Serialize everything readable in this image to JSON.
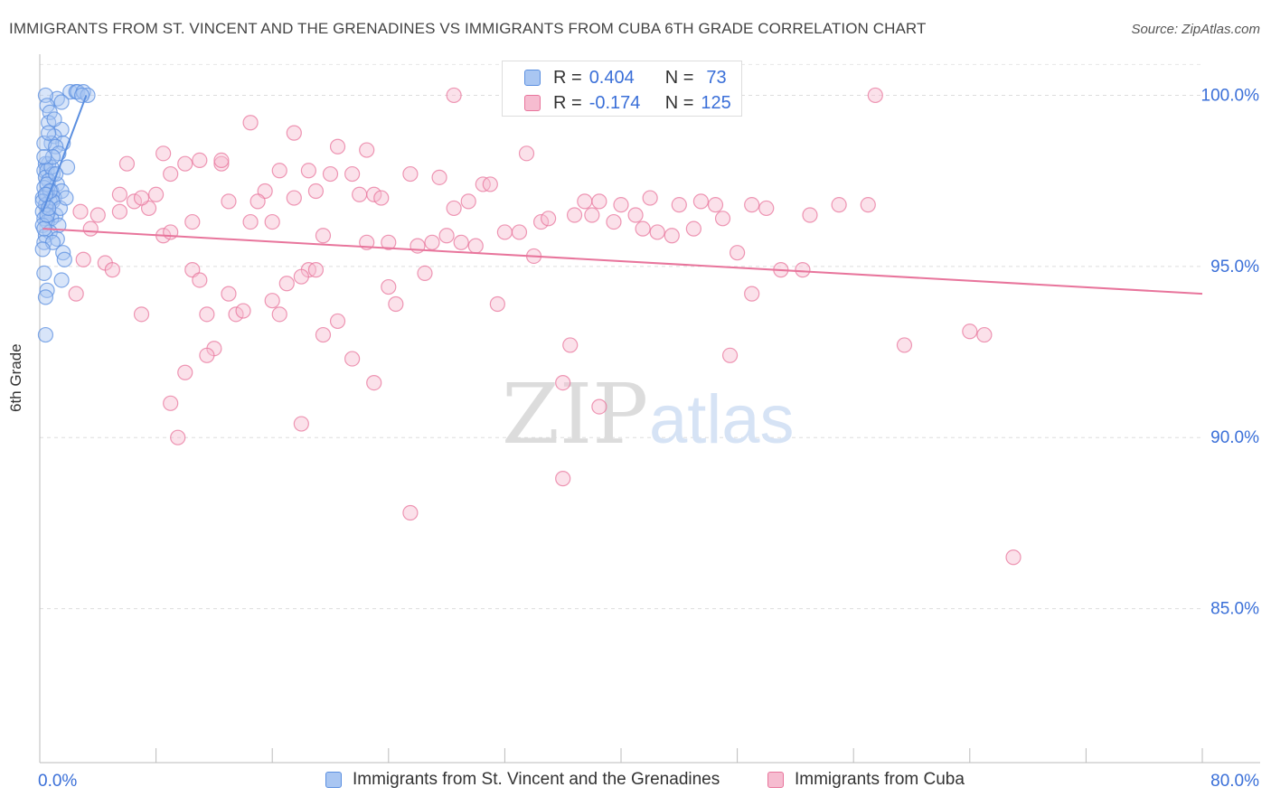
{
  "title": "IMMIGRANTS FROM ST. VINCENT AND THE GRENADINES VS IMMIGRANTS FROM CUBA 6TH GRADE CORRELATION CHART",
  "source": "Source: ZipAtlas.com",
  "watermark": {
    "zip": "ZIP",
    "atlas": "atlas"
  },
  "colors": {
    "blue": "#5b8fe0",
    "blue_fill": "#a9c6f2",
    "pink": "#e8759c",
    "pink_fill": "#f6bcd0",
    "tick_label": "#3a6fd8"
  },
  "stats": {
    "rows": [
      {
        "r_label": "R =",
        "r_value": "0.404",
        "n_label": "N =",
        "n_value": "73"
      },
      {
        "r_label": "R =",
        "r_value": "-0.174",
        "n_label": "N =",
        "n_value": "125"
      }
    ]
  },
  "legend": {
    "items": [
      "Immigrants from St. Vincent and the Grenadines",
      "Immigrants from Cuba"
    ]
  },
  "chart_data": {
    "type": "scatter",
    "ylabel": "6th Grade",
    "xlabel": "",
    "xlim": [
      0,
      80
    ],
    "ylim": [
      80.5,
      101.2
    ],
    "x_tick_labels": [
      "0.0%",
      "80.0%"
    ],
    "y_ticks": [
      85,
      90,
      95,
      100
    ],
    "y_tick_labels": [
      "85.0%",
      "90.0%",
      "95.0%",
      "100.0%"
    ],
    "grid": true,
    "legend_position": "bottom",
    "series": [
      {
        "name": "Immigrants from St. Vincent and the Grenadines",
        "color": "#5b8fe0",
        "trend": {
          "x": [
            0.2,
            3.2
          ],
          "y": [
            96.6,
            100.0
          ]
        },
        "points": [
          [
            2.1,
            100.1
          ],
          [
            2.5,
            100.1
          ],
          [
            2.6,
            100.1
          ],
          [
            3.0,
            100.1
          ],
          [
            3.3,
            100.0
          ],
          [
            1.2,
            99.9
          ],
          [
            1.5,
            99.8
          ],
          [
            2.9,
            100.0
          ],
          [
            0.4,
            100.0
          ],
          [
            0.5,
            99.7
          ],
          [
            0.7,
            99.5
          ],
          [
            0.6,
            99.2
          ],
          [
            1.5,
            99.0
          ],
          [
            1.0,
            98.8
          ],
          [
            1.6,
            98.6
          ],
          [
            0.8,
            98.6
          ],
          [
            0.3,
            98.6
          ],
          [
            1.1,
            98.5
          ],
          [
            0.6,
            98.0
          ],
          [
            0.4,
            98.0
          ],
          [
            1.9,
            97.9
          ],
          [
            0.3,
            97.8
          ],
          [
            0.5,
            97.8
          ],
          [
            0.9,
            97.7
          ],
          [
            0.4,
            97.6
          ],
          [
            0.6,
            97.5
          ],
          [
            1.2,
            97.4
          ],
          [
            0.3,
            97.3
          ],
          [
            0.8,
            97.2
          ],
          [
            1.5,
            97.2
          ],
          [
            0.5,
            97.1
          ],
          [
            0.2,
            97.0
          ],
          [
            1.0,
            97.0
          ],
          [
            0.7,
            96.9
          ],
          [
            0.4,
            96.8
          ],
          [
            0.2,
            96.6
          ],
          [
            0.6,
            96.6
          ],
          [
            1.1,
            96.5
          ],
          [
            0.3,
            96.4
          ],
          [
            0.8,
            96.4
          ],
          [
            0.5,
            96.3
          ],
          [
            1.3,
            96.2
          ],
          [
            0.2,
            96.2
          ],
          [
            0.7,
            96.0
          ],
          [
            0.4,
            95.9
          ],
          [
            1.2,
            95.8
          ],
          [
            0.3,
            95.7
          ],
          [
            0.9,
            95.7
          ],
          [
            0.2,
            95.5
          ],
          [
            1.6,
            95.4
          ],
          [
            1.7,
            95.2
          ],
          [
            0.3,
            94.8
          ],
          [
            1.5,
            94.6
          ],
          [
            0.5,
            94.3
          ],
          [
            0.4,
            94.1
          ],
          [
            0.4,
            93.0
          ],
          [
            0.8,
            97.9
          ],
          [
            1.3,
            98.3
          ],
          [
            0.6,
            98.9
          ],
          [
            1.0,
            99.3
          ],
          [
            0.5,
            97.4
          ],
          [
            0.9,
            96.9
          ],
          [
            0.3,
            96.1
          ],
          [
            1.4,
            96.7
          ],
          [
            0.7,
            97.2
          ],
          [
            0.2,
            96.9
          ],
          [
            1.8,
            97.0
          ],
          [
            0.5,
            96.5
          ],
          [
            0.9,
            98.2
          ],
          [
            0.4,
            97.1
          ],
          [
            1.1,
            97.7
          ],
          [
            0.6,
            96.7
          ],
          [
            0.3,
            98.2
          ]
        ]
      },
      {
        "name": "Immigrants from Cuba",
        "color": "#e8759c",
        "trend": {
          "x": [
            0.2,
            80.0
          ],
          "y": [
            96.1,
            94.2
          ]
        },
        "points": [
          [
            28.5,
            100.0
          ],
          [
            57.5,
            100.0
          ],
          [
            14.5,
            99.2
          ],
          [
            17.5,
            98.9
          ],
          [
            20.5,
            98.5
          ],
          [
            22.5,
            98.4
          ],
          [
            8.5,
            98.3
          ],
          [
            33.5,
            98.3
          ],
          [
            6.0,
            98.0
          ],
          [
            10.0,
            98.0
          ],
          [
            11.0,
            98.1
          ],
          [
            12.5,
            98.0
          ],
          [
            16.5,
            97.8
          ],
          [
            18.5,
            97.8
          ],
          [
            20.0,
            97.7
          ],
          [
            25.5,
            97.7
          ],
          [
            9.0,
            97.7
          ],
          [
            27.5,
            97.6
          ],
          [
            30.5,
            97.4
          ],
          [
            19.0,
            97.2
          ],
          [
            5.5,
            97.1
          ],
          [
            8.0,
            97.1
          ],
          [
            15.5,
            97.2
          ],
          [
            22.0,
            97.1
          ],
          [
            23.0,
            97.1
          ],
          [
            23.5,
            97.0
          ],
          [
            13.0,
            96.9
          ],
          [
            15.0,
            96.9
          ],
          [
            37.5,
            96.9
          ],
          [
            38.5,
            96.9
          ],
          [
            40.0,
            96.8
          ],
          [
            41.0,
            96.5
          ],
          [
            44.0,
            96.8
          ],
          [
            45.5,
            96.9
          ],
          [
            49.0,
            96.8
          ],
          [
            50.0,
            96.7
          ],
          [
            53.0,
            96.5
          ],
          [
            55.0,
            96.8
          ],
          [
            57.0,
            96.8
          ],
          [
            4.0,
            96.5
          ],
          [
            5.5,
            96.6
          ],
          [
            7.5,
            96.7
          ],
          [
            10.5,
            96.3
          ],
          [
            14.5,
            96.3
          ],
          [
            16.0,
            96.3
          ],
          [
            28.5,
            96.7
          ],
          [
            34.5,
            96.3
          ],
          [
            35.0,
            96.4
          ],
          [
            39.5,
            96.3
          ],
          [
            41.5,
            96.1
          ],
          [
            42.5,
            96.0
          ],
          [
            43.5,
            95.9
          ],
          [
            45.0,
            96.1
          ],
          [
            47.0,
            96.4
          ],
          [
            3.5,
            96.1
          ],
          [
            8.5,
            95.9
          ],
          [
            9.0,
            96.0
          ],
          [
            19.5,
            95.9
          ],
          [
            24.0,
            95.7
          ],
          [
            27.0,
            95.7
          ],
          [
            28.0,
            95.9
          ],
          [
            29.0,
            95.7
          ],
          [
            30.0,
            95.6
          ],
          [
            34.0,
            95.3
          ],
          [
            48.0,
            95.4
          ],
          [
            3.0,
            95.2
          ],
          [
            4.5,
            95.1
          ],
          [
            5.0,
            94.9
          ],
          [
            10.5,
            94.9
          ],
          [
            18.5,
            94.9
          ],
          [
            18.0,
            94.7
          ],
          [
            26.5,
            94.8
          ],
          [
            11.0,
            94.6
          ],
          [
            17.0,
            94.5
          ],
          [
            24.0,
            94.4
          ],
          [
            13.0,
            94.2
          ],
          [
            49.0,
            94.2
          ],
          [
            51.0,
            94.9
          ],
          [
            52.5,
            94.9
          ],
          [
            2.5,
            94.2
          ],
          [
            16.0,
            94.0
          ],
          [
            24.5,
            93.9
          ],
          [
            7.0,
            93.6
          ],
          [
            11.5,
            93.6
          ],
          [
            13.5,
            93.6
          ],
          [
            16.5,
            93.6
          ],
          [
            20.5,
            93.4
          ],
          [
            31.5,
            93.9
          ],
          [
            19.5,
            93.0
          ],
          [
            36.5,
            92.7
          ],
          [
            59.5,
            92.7
          ],
          [
            64.0,
            93.1
          ],
          [
            65.0,
            93.0
          ],
          [
            12.0,
            92.6
          ],
          [
            11.5,
            92.4
          ],
          [
            21.5,
            92.3
          ],
          [
            47.5,
            92.4
          ],
          [
            10.0,
            91.9
          ],
          [
            23.0,
            91.6
          ],
          [
            36.0,
            91.6
          ],
          [
            9.0,
            91.0
          ],
          [
            38.5,
            90.9
          ],
          [
            18.0,
            90.4
          ],
          [
            9.5,
            90.0
          ],
          [
            36.0,
            88.8
          ],
          [
            25.5,
            87.8
          ],
          [
            67.0,
            86.5
          ],
          [
            12.5,
            98.1
          ],
          [
            31.0,
            97.4
          ],
          [
            21.5,
            97.7
          ],
          [
            6.5,
            96.9
          ],
          [
            17.5,
            97.0
          ],
          [
            26.0,
            95.6
          ],
          [
            32.0,
            96.0
          ],
          [
            46.5,
            96.8
          ],
          [
            38.0,
            96.5
          ],
          [
            33.0,
            96.0
          ],
          [
            14.0,
            93.7
          ],
          [
            19.0,
            94.9
          ],
          [
            22.5,
            95.7
          ],
          [
            29.5,
            96.9
          ],
          [
            36.8,
            96.5
          ],
          [
            42.0,
            97.0
          ],
          [
            7.0,
            97.0
          ],
          [
            2.8,
            96.6
          ]
        ]
      }
    ]
  }
}
